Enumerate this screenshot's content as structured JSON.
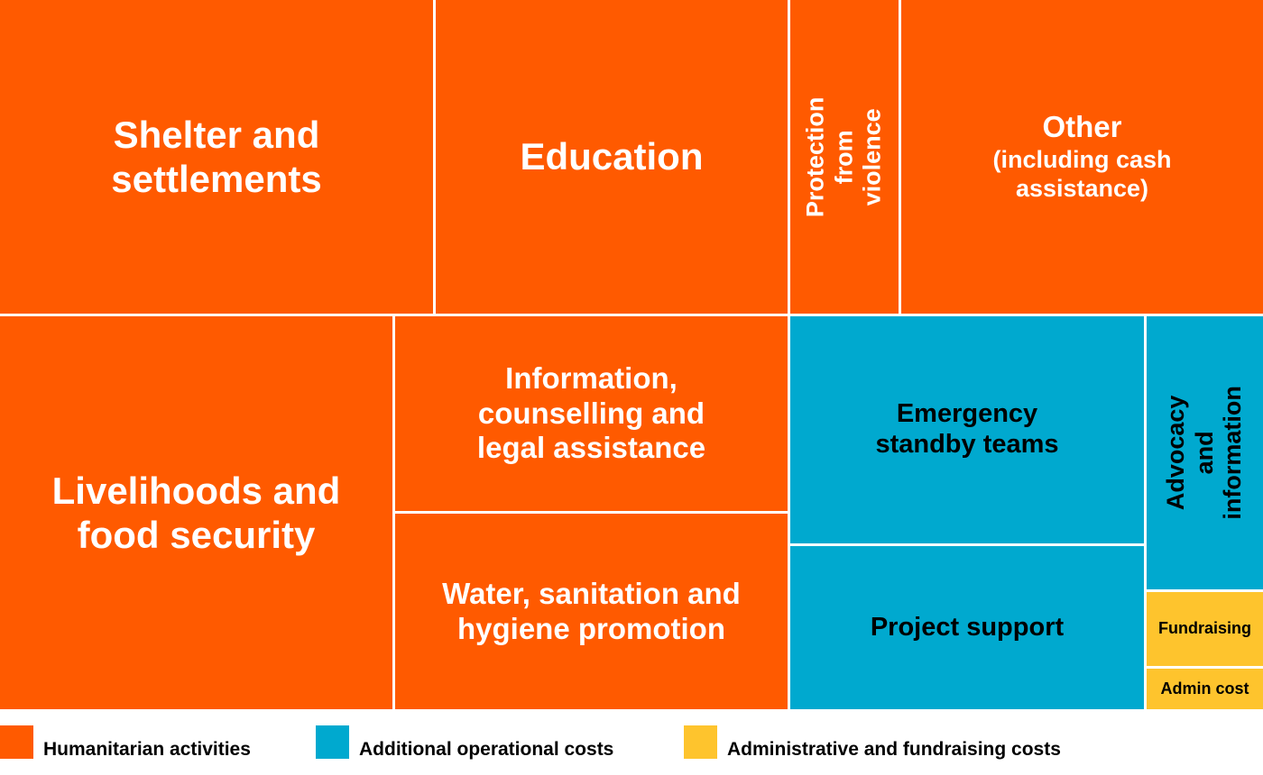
{
  "chart_data": {
    "type": "treemap",
    "legend": {
      "position": "bottom",
      "entries": [
        {
          "key": "humanitarian",
          "label": "Humanitarian activities",
          "color": "#ff5a00"
        },
        {
          "key": "operational",
          "label": "Additional operational costs",
          "color": "#00a9cf"
        },
        {
          "key": "admin",
          "label": "Administrative and fundraising costs",
          "color": "#fec42d"
        }
      ]
    },
    "tiles": [
      {
        "id": "shelter",
        "label": "Shelter and\nsettlements",
        "group": "humanitarian"
      },
      {
        "id": "education",
        "label": "Education",
        "group": "humanitarian"
      },
      {
        "id": "protection",
        "label": "Protection\nfrom violence",
        "group": "humanitarian"
      },
      {
        "id": "other",
        "label": "Other",
        "sublabel": "(including cash\nassistance)",
        "group": "humanitarian"
      },
      {
        "id": "livelihoods",
        "label": "Livelihoods and\nfood security",
        "group": "humanitarian"
      },
      {
        "id": "information",
        "label": "Information,\ncounselling and\nlegal assistance",
        "group": "humanitarian"
      },
      {
        "id": "water",
        "label": "Water, sanitation and\nhygiene promotion",
        "group": "humanitarian"
      },
      {
        "id": "emergency",
        "label": "Emergency\nstandby teams",
        "group": "operational"
      },
      {
        "id": "project",
        "label": "Project support",
        "group": "operational"
      },
      {
        "id": "advocacy",
        "label": "Advocacy\nand information",
        "group": "operational"
      },
      {
        "id": "fundraising",
        "label": "Fundraising",
        "group": "admin"
      },
      {
        "id": "admin-cost",
        "label": "Admin cost",
        "group": "admin"
      }
    ]
  }
}
